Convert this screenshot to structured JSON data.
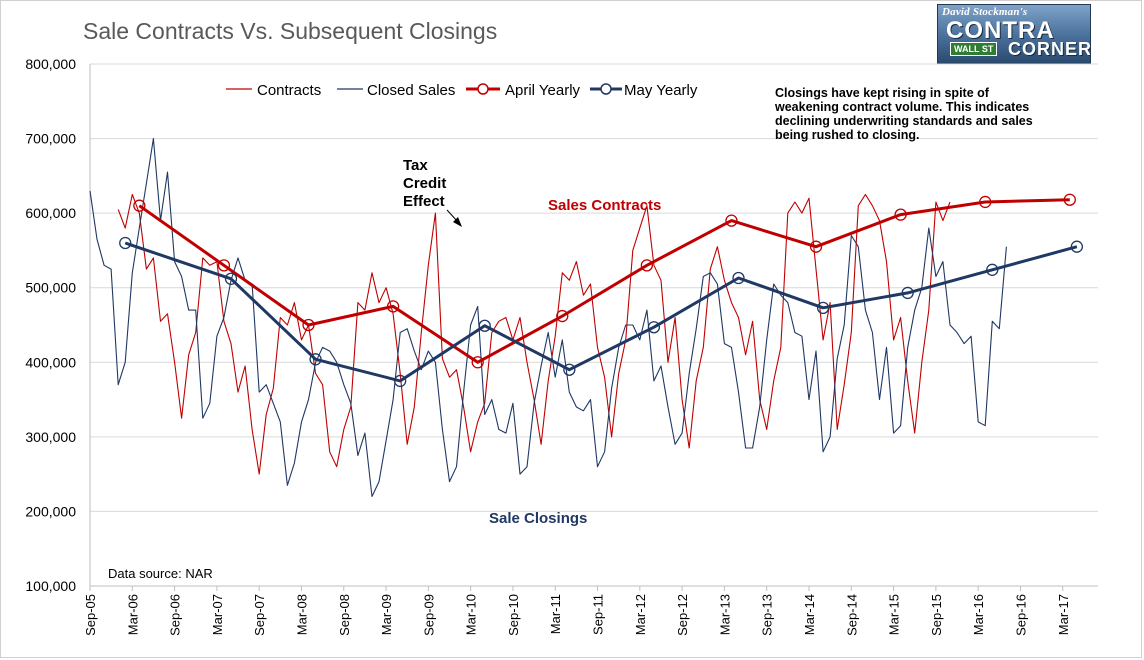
{
  "title": "Sale Contracts Vs. Subsequent Closings",
  "logo": {
    "line1": "David Stockman's",
    "word1": "CONTRA",
    "street": "WALL ST",
    "word2": "CORNER"
  },
  "annotations": {
    "note_lines": [
      "Closings have kept rising in spite of",
      "weakening contract volume. This indicates",
      "declining underwriting standards and sales",
      "being rushed to closing."
    ],
    "tax_credit_lines": [
      "Tax",
      "Credit",
      "Effect"
    ],
    "sales_contracts": "Sales Contracts",
    "sale_closings": "Sale Closings",
    "source": "Data source: NAR"
  },
  "colors": {
    "contracts": "#c00000",
    "closed": "#1f3864",
    "grid": "#d9d9d9",
    "axis_text": "#000000"
  },
  "chart_data": {
    "type": "line",
    "ylim": [
      100000,
      800000
    ],
    "yticks": [
      100000,
      200000,
      300000,
      400000,
      500000,
      600000,
      700000,
      800000
    ],
    "ytick_labels": [
      "100,000",
      "200,000",
      "300,000",
      "400,000",
      "500,000",
      "600,000",
      "700,000",
      "800,000"
    ],
    "x_range": [
      "2005-09",
      "2017-08"
    ],
    "xtick_labels": [
      "Sep-05",
      "Mar-06",
      "Sep-06",
      "Mar-07",
      "Sep-07",
      "Mar-08",
      "Sep-08",
      "Mar-09",
      "Sep-09",
      "Mar-10",
      "Sep-10",
      "Mar-11",
      "Sep-11",
      "Mar-12",
      "Sep-12",
      "Mar-13",
      "Sep-13",
      "Mar-14",
      "Sep-14",
      "Mar-15",
      "Sep-15",
      "Mar-16",
      "Sep-16",
      "Mar-17"
    ],
    "grid": "horizontal",
    "legend_position": "top",
    "series": [
      {
        "name": "Contracts",
        "style": "thin",
        "color": "#c00000",
        "start": "2006-01",
        "values": [
          605000,
          580000,
          625000,
          600000,
          525000,
          540000,
          455000,
          465000,
          400000,
          325000,
          410000,
          440000,
          540000,
          530000,
          535000,
          455000,
          425000,
          360000,
          395000,
          310000,
          250000,
          330000,
          365000,
          460000,
          450000,
          480000,
          430000,
          450000,
          385000,
          370000,
          280000,
          260000,
          310000,
          340000,
          480000,
          470000,
          520000,
          480000,
          500000,
          465000,
          385000,
          290000,
          340000,
          440000,
          530000,
          600000,
          405000,
          380000,
          390000,
          340000,
          280000,
          320000,
          345000,
          440000,
          455000,
          460000,
          430000,
          460000,
          400000,
          350000,
          290000,
          375000,
          435000,
          520000,
          510000,
          535000,
          490000,
          505000,
          420000,
          380000,
          300000,
          385000,
          430000,
          550000,
          580000,
          610000,
          530000,
          510000,
          400000,
          460000,
          350000,
          285000,
          375000,
          420000,
          525000,
          555000,
          510000,
          480000,
          460000,
          410000,
          455000,
          350000,
          310000,
          375000,
          420000,
          600000,
          615000,
          600000,
          620000,
          525000,
          430000,
          480000,
          310000,
          370000,
          440000,
          610000,
          625000,
          610000,
          590000,
          535000,
          430000,
          460000,
          375000,
          305000,
          400000,
          470000,
          615000,
          590000,
          615000
        ]
      },
      {
        "name": "Closed Sales",
        "style": "thin",
        "color": "#1f3864",
        "start": "2005-09",
        "values": [
          630000,
          565000,
          530000,
          525000,
          370000,
          400000,
          520000,
          580000,
          640000,
          700000,
          590000,
          655000,
          535000,
          515000,
          470000,
          470000,
          325000,
          345000,
          435000,
          460000,
          510000,
          540000,
          510000,
          505000,
          360000,
          370000,
          345000,
          320000,
          235000,
          265000,
          320000,
          350000,
          400000,
          420000,
          415000,
          400000,
          370000,
          345000,
          275000,
          305000,
          220000,
          240000,
          295000,
          350000,
          440000,
          445000,
          415000,
          390000,
          415000,
          400000,
          310000,
          240000,
          260000,
          360000,
          450000,
          475000,
          330000,
          350000,
          310000,
          305000,
          345000,
          250000,
          260000,
          345000,
          395000,
          440000,
          380000,
          430000,
          360000,
          340000,
          335000,
          350000,
          260000,
          280000,
          365000,
          420000,
          450000,
          450000,
          430000,
          470000,
          375000,
          395000,
          340000,
          290000,
          305000,
          385000,
          445000,
          515000,
          520000,
          505000,
          425000,
          420000,
          360000,
          285000,
          285000,
          340000,
          430000,
          505000,
          490000,
          480000,
          440000,
          435000,
          350000,
          415000,
          280000,
          300000,
          405000,
          450000,
          570000,
          555000,
          470000,
          440000,
          350000,
          420000,
          305000,
          315000,
          420000,
          470000,
          500000,
          580000,
          515000,
          535000,
          450000,
          440000,
          425000,
          435000,
          320000,
          315000,
          455000,
          445000,
          555000
        ]
      },
      {
        "name": "April Yearly",
        "style": "bold-marker",
        "color": "#c00000",
        "dates": [
          "2006-04",
          "2007-04",
          "2008-04",
          "2009-04",
          "2010-04",
          "2011-04",
          "2012-04",
          "2013-04",
          "2014-04",
          "2015-04",
          "2016-04",
          "2017-04"
        ],
        "values": [
          610000,
          530000,
          450000,
          475000,
          400000,
          462000,
          530000,
          590000,
          555000,
          598000,
          615000,
          618000
        ]
      },
      {
        "name": "May Yearly",
        "style": "bold-marker",
        "color": "#1f3864",
        "dates": [
          "2006-02",
          "2007-05",
          "2008-05",
          "2009-05",
          "2010-05",
          "2011-05",
          "2012-05",
          "2013-05",
          "2014-05",
          "2015-05",
          "2016-05",
          "2017-05"
        ],
        "values": [
          560000,
          512000,
          404000,
          375000,
          449000,
          390000,
          447000,
          513000,
          473000,
          493000,
          524000,
          555000
        ]
      }
    ]
  }
}
